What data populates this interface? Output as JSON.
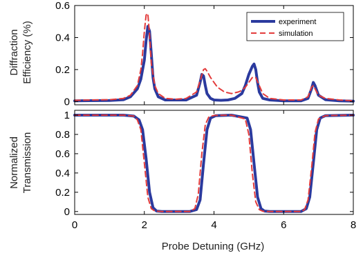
{
  "chart_data": [
    {
      "type": "line",
      "ylabel_lines": [
        "Diffraction",
        "Efficiency (%)"
      ],
      "xlim": [
        0,
        8
      ],
      "ylim": [
        -0.02,
        0.6
      ],
      "yticks": [
        0,
        0.2,
        0.4,
        0.6
      ],
      "ytick_labels": [
        "0",
        "0.2",
        "0.4",
        "0.6"
      ],
      "grid": false,
      "legend": "top-right",
      "series": [
        {
          "name": "experiment",
          "style": "solid",
          "color": "#2b3a9e",
          "x": [
            0,
            1.0,
            1.4,
            1.6,
            1.8,
            1.9,
            2.0,
            2.05,
            2.1,
            2.15,
            2.2,
            2.25,
            2.3,
            2.4,
            2.6,
            2.9,
            3.2,
            3.5,
            3.6,
            3.65,
            3.7,
            3.75,
            3.8,
            3.9,
            4.0,
            4.2,
            4.4,
            4.6,
            4.8,
            4.9,
            5.0,
            5.1,
            5.15,
            5.2,
            5.25,
            5.3,
            5.4,
            5.6,
            6.0,
            6.5,
            6.7,
            6.8,
            6.85,
            6.9,
            7.0,
            7.2,
            7.6,
            8.0
          ],
          "y": [
            0.005,
            0.007,
            0.012,
            0.03,
            0.08,
            0.14,
            0.26,
            0.38,
            0.47,
            0.44,
            0.3,
            0.15,
            0.08,
            0.03,
            0.01,
            0.01,
            0.01,
            0.04,
            0.12,
            0.17,
            0.16,
            0.1,
            0.05,
            0.02,
            0.01,
            0.008,
            0.01,
            0.02,
            0.05,
            0.1,
            0.17,
            0.22,
            0.235,
            0.2,
            0.12,
            0.06,
            0.02,
            0.01,
            0.005,
            0.005,
            0.02,
            0.08,
            0.12,
            0.1,
            0.04,
            0.012,
            0.005,
            0.003
          ]
        },
        {
          "name": "simulation",
          "style": "dashed",
          "color": "#e33b3b",
          "x": [
            0,
            1.0,
            1.4,
            1.6,
            1.8,
            1.9,
            1.95,
            2.0,
            2.05,
            2.1,
            2.15,
            2.2,
            2.3,
            2.4,
            2.6,
            2.9,
            3.2,
            3.5,
            3.6,
            3.7,
            3.75,
            3.8,
            3.9,
            4.1,
            4.3,
            4.5,
            4.7,
            4.8,
            4.9,
            5.0,
            5.1,
            5.2,
            5.3,
            5.4,
            5.6,
            6.0,
            6.5,
            6.7,
            6.8,
            6.85,
            6.9,
            7.0,
            7.2,
            7.6,
            8.0
          ],
          "y": [
            0.008,
            0.012,
            0.02,
            0.04,
            0.1,
            0.2,
            0.3,
            0.44,
            0.54,
            0.55,
            0.42,
            0.24,
            0.1,
            0.05,
            0.02,
            0.015,
            0.02,
            0.06,
            0.13,
            0.2,
            0.205,
            0.19,
            0.15,
            0.09,
            0.06,
            0.05,
            0.06,
            0.07,
            0.09,
            0.12,
            0.15,
            0.15,
            0.1,
            0.05,
            0.02,
            0.01,
            0.01,
            0.03,
            0.09,
            0.1,
            0.08,
            0.04,
            0.02,
            0.01,
            0.005
          ]
        }
      ]
    },
    {
      "type": "line",
      "ylabel_lines": [
        "Normalized",
        "Transmission"
      ],
      "xlabel": "Probe Detuning (GHz)",
      "xlim": [
        0,
        8
      ],
      "xticks": [
        0,
        2,
        4,
        6,
        8
      ],
      "xtick_labels": [
        "0",
        "2",
        "4",
        "6",
        "8"
      ],
      "ylim": [
        -0.03,
        1.05
      ],
      "yticks": [
        0,
        0.2,
        0.4,
        0.6,
        0.8,
        1
      ],
      "ytick_labels": [
        "0",
        "0.2",
        "0.4",
        "0.6",
        "0.8",
        "1"
      ],
      "grid": false,
      "series": [
        {
          "name": "experiment",
          "style": "solid",
          "color": "#2b3a9e",
          "x": [
            0,
            1.4,
            1.7,
            1.85,
            1.95,
            2.05,
            2.15,
            2.25,
            2.35,
            2.5,
            3.3,
            3.5,
            3.6,
            3.7,
            3.8,
            3.9,
            4.05,
            4.5,
            4.95,
            5.05,
            5.15,
            5.25,
            5.35,
            5.45,
            5.6,
            6.5,
            6.65,
            6.75,
            6.85,
            6.95,
            7.05,
            7.2,
            8.0
          ],
          "y": [
            1,
            1,
            0.99,
            0.95,
            0.85,
            0.55,
            0.2,
            0.04,
            0.005,
            0,
            0,
            0.02,
            0.12,
            0.5,
            0.85,
            0.97,
            0.995,
            1,
            0.97,
            0.85,
            0.5,
            0.15,
            0.03,
            0.005,
            0,
            0,
            0.03,
            0.15,
            0.5,
            0.85,
            0.97,
            0.995,
            1
          ]
        },
        {
          "name": "simulation",
          "style": "dashed",
          "color": "#e33b3b",
          "x": [
            0,
            1.4,
            1.7,
            1.8,
            1.9,
            2.0,
            2.1,
            2.2,
            2.3,
            2.5,
            3.3,
            3.45,
            3.55,
            3.65,
            3.75,
            3.85,
            4.0,
            4.5,
            4.9,
            5.0,
            5.1,
            5.2,
            5.3,
            5.4,
            5.6,
            6.5,
            6.6,
            6.7,
            6.8,
            6.9,
            7.0,
            7.2,
            8.0
          ],
          "y": [
            1,
            1,
            0.99,
            0.95,
            0.85,
            0.5,
            0.15,
            0.03,
            0.005,
            0,
            0,
            0.03,
            0.18,
            0.6,
            0.9,
            0.98,
            0.997,
            1,
            0.96,
            0.8,
            0.4,
            0.1,
            0.02,
            0.003,
            0,
            0,
            0.02,
            0.12,
            0.45,
            0.82,
            0.96,
            0.995,
            1
          ]
        }
      ]
    }
  ]
}
